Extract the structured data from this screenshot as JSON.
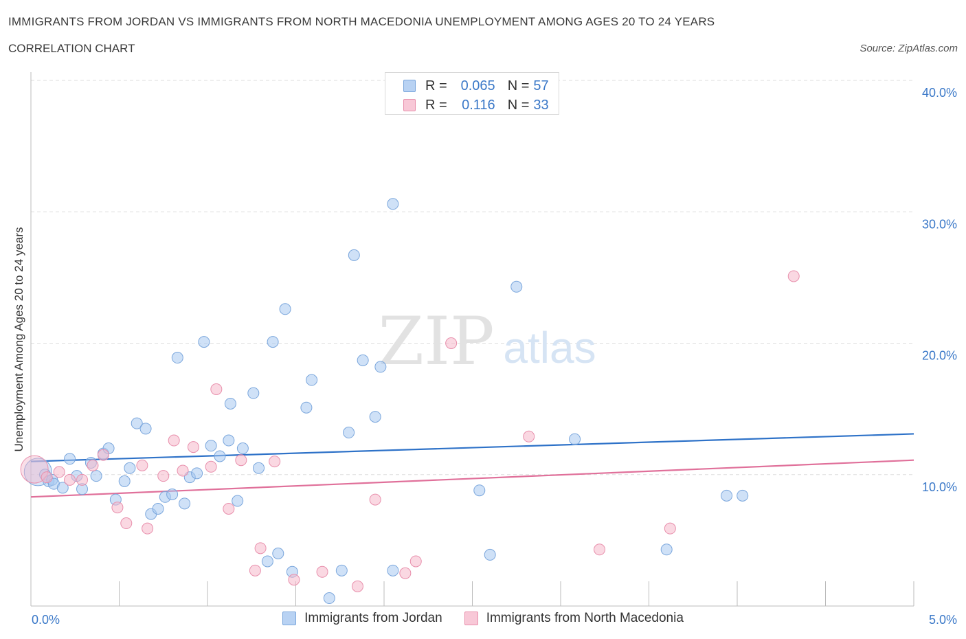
{
  "header": {
    "title": "IMMIGRANTS FROM JORDAN VS IMMIGRANTS FROM NORTH MACEDONIA UNEMPLOYMENT AMONG AGES 20 TO 24 YEARS",
    "subtitle": "CORRELATION CHART",
    "source": "Source: ZipAtlas.com"
  },
  "watermark": {
    "zip": "ZIP",
    "atlas": "atlas"
  },
  "colors": {
    "blue_fill": "#a8c8f0",
    "blue_stroke": "#7aa6dc",
    "blue_line": "#2e72c8",
    "pink_fill": "#f5b8cb",
    "pink_stroke": "#e88fac",
    "pink_line": "#e0709a",
    "axis_text": "#3a78c8",
    "grid": "#dddddd"
  },
  "legend_top": {
    "rows": [
      {
        "r_label": "R =",
        "r_value": "0.065",
        "n_label": "N =",
        "n_value": "57"
      },
      {
        "r_label": "R =",
        "r_value": "0.116",
        "n_label": "N =",
        "n_value": "33"
      }
    ]
  },
  "legend_bottom": {
    "items": [
      {
        "label": "Immigrants from Jordan"
      },
      {
        "label": "Immigrants from North Macedonia"
      }
    ]
  },
  "chart_data": {
    "type": "scatter",
    "title": "IMMIGRANTS FROM JORDAN VS IMMIGRANTS FROM NORTH MACEDONIA UNEMPLOYMENT AMONG AGES 20 TO 24 YEARS",
    "xlabel": "",
    "ylabel": "Unemployment Among Ages 20 to 24 years",
    "xlim": [
      0,
      5
    ],
    "ylim": [
      0,
      40
    ],
    "x_tick_labels": [
      {
        "value": 0,
        "label": "0.0%"
      },
      {
        "value": 5,
        "label": "5.0%"
      }
    ],
    "y_tick_labels": [
      {
        "value": 10,
        "label": "10.0%"
      },
      {
        "value": 20,
        "label": "20.0%"
      },
      {
        "value": 30,
        "label": "30.0%"
      },
      {
        "value": 40,
        "label": "40.0%"
      }
    ],
    "x_minor_ticks": [
      0.5,
      1.0,
      1.5,
      2.0,
      2.5,
      3.0,
      3.5,
      4.0,
      4.5
    ],
    "grid": true,
    "series": [
      {
        "name": "Immigrants from Jordan",
        "color": "blue",
        "trend": {
          "x": [
            0,
            5
          ],
          "y": [
            11.0,
            13.1
          ]
        },
        "points": [
          {
            "x": 0.04,
            "y": 10.2,
            "big": true
          },
          {
            "x": 0.08,
            "y": 10.0
          },
          {
            "x": 0.1,
            "y": 9.5
          },
          {
            "x": 0.12,
            "y": 9.6
          },
          {
            "x": 0.13,
            "y": 9.3
          },
          {
            "x": 0.18,
            "y": 9.0
          },
          {
            "x": 0.22,
            "y": 11.2
          },
          {
            "x": 0.26,
            "y": 9.9
          },
          {
            "x": 0.29,
            "y": 8.9
          },
          {
            "x": 0.34,
            "y": 10.9
          },
          {
            "x": 0.37,
            "y": 9.9
          },
          {
            "x": 0.41,
            "y": 11.6
          },
          {
            "x": 0.44,
            "y": 12.0
          },
          {
            "x": 0.48,
            "y": 8.1
          },
          {
            "x": 0.53,
            "y": 9.5
          },
          {
            "x": 0.56,
            "y": 10.5
          },
          {
            "x": 0.6,
            "y": 13.9
          },
          {
            "x": 0.65,
            "y": 13.5
          },
          {
            "x": 0.68,
            "y": 7.0
          },
          {
            "x": 0.72,
            "y": 7.4
          },
          {
            "x": 0.76,
            "y": 8.3
          },
          {
            "x": 0.8,
            "y": 8.5
          },
          {
            "x": 0.83,
            "y": 18.9
          },
          {
            "x": 0.87,
            "y": 7.8
          },
          {
            "x": 0.9,
            "y": 9.8
          },
          {
            "x": 0.94,
            "y": 10.1
          },
          {
            "x": 0.98,
            "y": 20.1
          },
          {
            "x": 1.02,
            "y": 12.2
          },
          {
            "x": 1.07,
            "y": 11.4
          },
          {
            "x": 1.12,
            "y": 12.6
          },
          {
            "x": 1.13,
            "y": 15.4
          },
          {
            "x": 1.17,
            "y": 8.0
          },
          {
            "x": 1.2,
            "y": 12.0
          },
          {
            "x": 1.26,
            "y": 16.2
          },
          {
            "x": 1.29,
            "y": 10.5
          },
          {
            "x": 1.34,
            "y": 3.4
          },
          {
            "x": 1.37,
            "y": 20.1
          },
          {
            "x": 1.4,
            "y": 4.0
          },
          {
            "x": 1.44,
            "y": 22.6
          },
          {
            "x": 1.48,
            "y": 2.6
          },
          {
            "x": 1.56,
            "y": 15.1
          },
          {
            "x": 1.59,
            "y": 17.2
          },
          {
            "x": 1.69,
            "y": 0.6
          },
          {
            "x": 1.76,
            "y": 2.7
          },
          {
            "x": 1.8,
            "y": 13.2
          },
          {
            "x": 1.83,
            "y": 26.7
          },
          {
            "x": 1.88,
            "y": 18.7
          },
          {
            "x": 1.95,
            "y": 14.4
          },
          {
            "x": 1.98,
            "y": 18.2
          },
          {
            "x": 2.05,
            "y": 2.7
          },
          {
            "x": 2.05,
            "y": 30.6
          },
          {
            "x": 2.54,
            "y": 8.8
          },
          {
            "x": 2.6,
            "y": 3.9
          },
          {
            "x": 2.75,
            "y": 24.3
          },
          {
            "x": 3.08,
            "y": 12.7
          },
          {
            "x": 3.6,
            "y": 4.3
          },
          {
            "x": 3.94,
            "y": 8.4
          },
          {
            "x": 4.03,
            "y": 8.4
          }
        ]
      },
      {
        "name": "Immigrants from North Macedonia",
        "color": "pink",
        "trend": {
          "x": [
            0,
            5
          ],
          "y": [
            8.3,
            11.1
          ]
        },
        "points": [
          {
            "x": 0.02,
            "y": 10.4,
            "big": true
          },
          {
            "x": 0.09,
            "y": 9.8
          },
          {
            "x": 0.16,
            "y": 10.2
          },
          {
            "x": 0.22,
            "y": 9.6
          },
          {
            "x": 0.29,
            "y": 9.6
          },
          {
            "x": 0.35,
            "y": 10.7
          },
          {
            "x": 0.41,
            "y": 11.5
          },
          {
            "x": 0.49,
            "y": 7.5
          },
          {
            "x": 0.54,
            "y": 6.3
          },
          {
            "x": 0.63,
            "y": 10.7
          },
          {
            "x": 0.66,
            "y": 5.9
          },
          {
            "x": 0.75,
            "y": 9.9
          },
          {
            "x": 0.81,
            "y": 12.6
          },
          {
            "x": 0.86,
            "y": 10.3
          },
          {
            "x": 0.92,
            "y": 12.1
          },
          {
            "x": 1.02,
            "y": 10.6
          },
          {
            "x": 1.05,
            "y": 16.5
          },
          {
            "x": 1.12,
            "y": 7.4
          },
          {
            "x": 1.19,
            "y": 11.1
          },
          {
            "x": 1.27,
            "y": 2.7
          },
          {
            "x": 1.3,
            "y": 4.4
          },
          {
            "x": 1.38,
            "y": 11.0
          },
          {
            "x": 1.49,
            "y": 2.0
          },
          {
            "x": 1.65,
            "y": 2.6
          },
          {
            "x": 1.85,
            "y": 1.5
          },
          {
            "x": 1.95,
            "y": 8.1
          },
          {
            "x": 2.12,
            "y": 2.5
          },
          {
            "x": 2.18,
            "y": 3.4
          },
          {
            "x": 2.38,
            "y": 20.0
          },
          {
            "x": 2.82,
            "y": 12.9
          },
          {
            "x": 3.22,
            "y": 4.3
          },
          {
            "x": 3.62,
            "y": 5.9
          },
          {
            "x": 4.32,
            "y": 25.1
          }
        ]
      }
    ]
  }
}
